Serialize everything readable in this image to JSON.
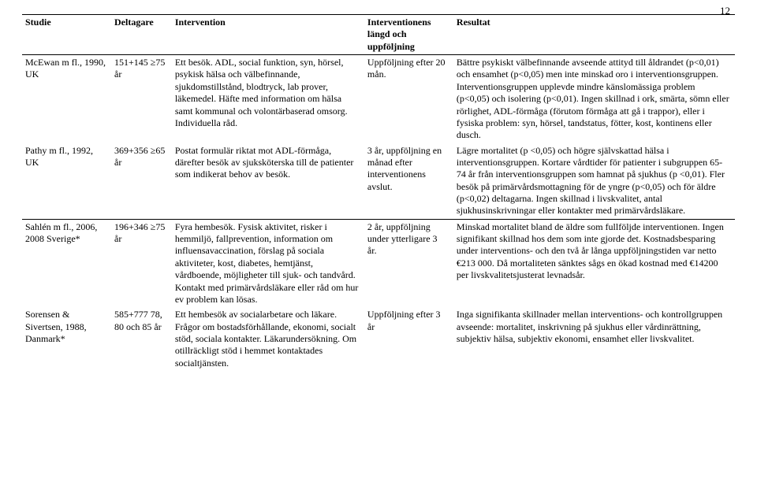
{
  "page_number": "12",
  "table": {
    "columns": [
      "Studie",
      "Deltagare",
      "Intervention",
      "Interventionens längd och uppföljning",
      "Resultat"
    ],
    "rows": [
      {
        "study": "McEwan m fl., 1990, UK",
        "participants": "151+145 ≥75 år",
        "intervention": "Ett besök. ADL, social funktion, syn, hörsel, psykisk hälsa och välbefinnande, sjukdomstillstånd, blodtryck, lab prover, läkemedel. Häfte med information om hälsa samt kommunal och volontärbaserad omsorg. Individuella råd.",
        "followup": "Uppföljning efter 20 mån.",
        "result": "Bättre psykiskt välbefinnande avseende attityd till åldrandet (p<0,01) och ensamhet (p<0,05) men inte minskad oro i interventionsgruppen. Interventionsgruppen upplevde mindre känslomässiga problem (p<0,05) och isolering (p<0,01). Ingen skillnad i ork, smärta, sömn eller rörlighet, ADL-förmåga (förutom förmåga att gå i trappor), eller i fysiska problem: syn, hörsel, tandstatus, fötter, kost, kontinens eller dusch."
      },
      {
        "study": "Pathy m fl., 1992, UK",
        "participants": "369+356 ≥65 år",
        "intervention": "Postat formulär riktat mot ADL-förmåga, därefter besök av sjuksköterska till de patienter som indikerat behov av besök.",
        "followup": "3 år, uppföljning en månad efter interventionens avslut.",
        "result": "Lägre mortalitet (p <0,05) och högre självskattad hälsa i interventionsgruppen. Kortare vårdtider för patienter i subgruppen 65-74 år från interventionsgruppen som hamnat på sjukhus (p <0,01). Fler besök på primärvårdsmottagning för de yngre (p<0,05) och för äldre (p<0,02) deltagarna. Ingen skillnad i livskvalitet, antal sjukhusinskrivningar eller kontakter med primärvårdsläkare."
      },
      {
        "study": "Sahlén m fl., 2006, 2008 Sverige*",
        "participants": "196+346 ≥75 år",
        "intervention": "Fyra hembesök. Fysisk aktivitet, risker i hemmiljö, fallprevention, information om influensavaccination, förslag på sociala aktiviteter, kost, diabetes, hemtjänst, vårdboende, möjligheter till sjuk- och tandvård. Kontakt med primärvårdsläkare eller råd om hur ev problem kan lösas.",
        "followup": "2 år, uppföljning under ytterligare 3 år.",
        "result": "Minskad mortalitet bland de äldre som fullföljde interventionen. Ingen signifikant skillnad hos dem som inte gjorde det. Kostnadsbesparing under interventions- och den två år långa uppföljningstiden var netto €213 000. Då mortaliteten sänktes sågs en ökad kostnad med €14200 per livskvalitetsjusterat levnadsår."
      },
      {
        "study": "Sorensen & Sivertsen, 1988, Danmark*",
        "participants": "585+777 78, 80 och 85 år",
        "intervention": "Ett hembesök av socialarbetare och läkare. Frågor om bostadsförhållande, ekonomi, socialt stöd, sociala kontakter. Läkarundersökning. Om otillräckligt stöd i hemmet kontaktades socialtjänsten.",
        "followup": "Uppföljning efter 3 år",
        "result": "Inga signifikanta skillnader mellan interventions- och kontrollgruppen avseende: mortalitet, inskrivning på sjukhus eller vårdinrättning, subjektiv hälsa, subjektiv ekonomi, ensamhet eller livskvalitet."
      }
    ]
  }
}
